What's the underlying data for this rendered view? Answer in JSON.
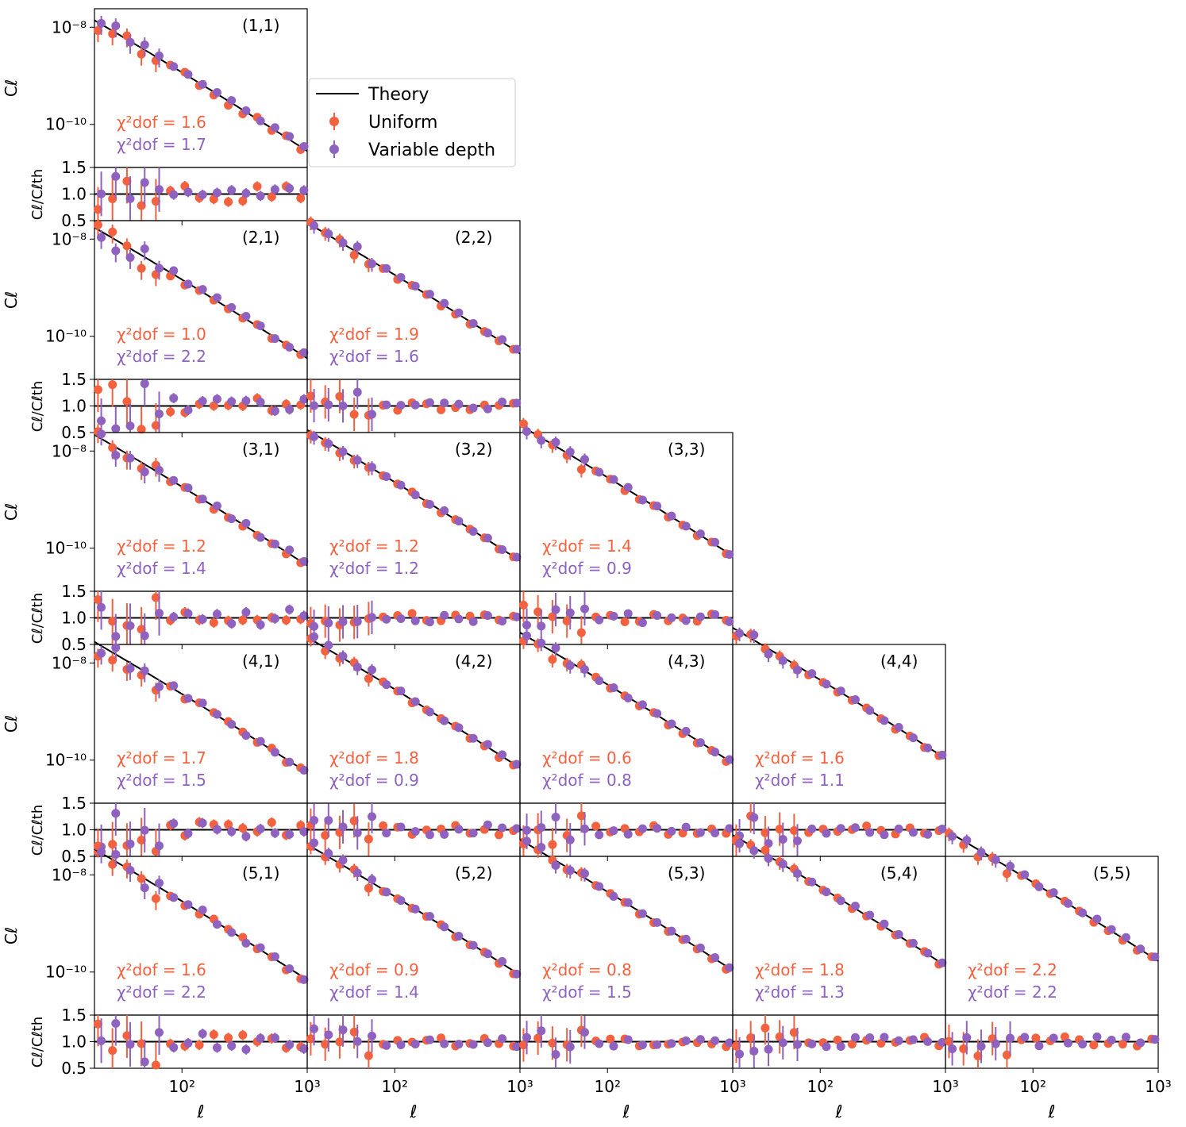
{
  "figure": {
    "colors": {
      "uniform": "#F4613F",
      "variable": "#8F62C0",
      "theory": "#000000"
    }
  },
  "legend": {
    "theory_label": "Theory",
    "uniform_label": "Uniform",
    "variable_label": "Variable depth"
  },
  "axes": {
    "ylabel_top_html": "C<tspan font-style='italic' font-size='14' dy='4'>ℓ</tspan>",
    "ylabel_top": "Cℓ",
    "ylabel_bottom": "Cℓ/Cℓth",
    "xlabel": "ℓ",
    "x_ticks": [
      "10²",
      "10³"
    ],
    "y_ticks_top": [
      "10⁻⁸",
      "10⁻¹⁰"
    ],
    "y_ticks_bottom": [
      "1.5",
      "1.0",
      "0.5"
    ]
  },
  "chart_data": {
    "type": "scatter",
    "x_scale": "log",
    "y_scale": "log",
    "xlim": [
      20,
      1000
    ],
    "ylim_top": [
      1.3e-11,
      2.4e-08
    ],
    "ylim_ratio": [
      0.5,
      1.5
    ],
    "chi_label_prefix": "χ²dof = ",
    "panels": [
      {
        "label": "(1,1)",
        "row": 1,
        "col": 1,
        "chi_uniform": "1.6",
        "chi_variable": "1.7"
      },
      {
        "label": "(2,1)",
        "row": 2,
        "col": 1,
        "chi_uniform": "1.0",
        "chi_variable": "2.2"
      },
      {
        "label": "(2,2)",
        "row": 2,
        "col": 2,
        "chi_uniform": "1.9",
        "chi_variable": "1.6"
      },
      {
        "label": "(3,1)",
        "row": 3,
        "col": 1,
        "chi_uniform": "1.2",
        "chi_variable": "1.4"
      },
      {
        "label": "(3,2)",
        "row": 3,
        "col": 2,
        "chi_uniform": "1.2",
        "chi_variable": "1.2"
      },
      {
        "label": "(3,3)",
        "row": 3,
        "col": 3,
        "chi_uniform": "1.4",
        "chi_variable": "0.9"
      },
      {
        "label": "(4,1)",
        "row": 4,
        "col": 1,
        "chi_uniform": "1.7",
        "chi_variable": "1.5"
      },
      {
        "label": "(4,2)",
        "row": 4,
        "col": 2,
        "chi_uniform": "1.8",
        "chi_variable": "0.9"
      },
      {
        "label": "(4,3)",
        "row": 4,
        "col": 3,
        "chi_uniform": "0.6",
        "chi_variable": "0.8"
      },
      {
        "label": "(4,4)",
        "row": 4,
        "col": 4,
        "chi_uniform": "1.6",
        "chi_variable": "1.1"
      },
      {
        "label": "(5,1)",
        "row": 5,
        "col": 1,
        "chi_uniform": "1.6",
        "chi_variable": "2.2"
      },
      {
        "label": "(5,2)",
        "row": 5,
        "col": 2,
        "chi_uniform": "0.9",
        "chi_variable": "1.4"
      },
      {
        "label": "(5,3)",
        "row": 5,
        "col": 3,
        "chi_uniform": "0.8",
        "chi_variable": "1.5"
      },
      {
        "label": "(5,4)",
        "row": 5,
        "col": 4,
        "chi_uniform": "1.8",
        "chi_variable": "1.3"
      },
      {
        "label": "(5,5)",
        "row": 5,
        "col": 5,
        "chi_uniform": "2.2",
        "chi_variable": "2.2"
      }
    ]
  }
}
